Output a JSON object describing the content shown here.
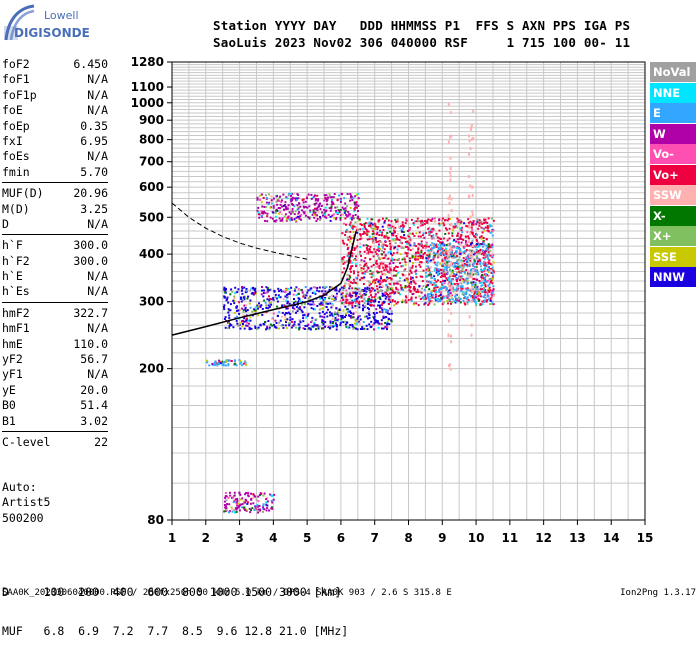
{
  "logo": {
    "line1": "Lowell",
    "line2": "DIGISONDE"
  },
  "header": {
    "line1": "Station YYYY DAY   DDD HHMMSS P1  FFS S AXN PPS IGA PS",
    "line2": "SaoLuis 2023 Nov02 306 040000 RSF     1 715 100 00- 11"
  },
  "params": [
    [
      {
        "name": "foF2",
        "value": "6.450"
      },
      {
        "name": "foF1",
        "value": "N/A"
      },
      {
        "name": "foF1p",
        "value": "N/A"
      },
      {
        "name": "foE",
        "value": "N/A"
      },
      {
        "name": "foEp",
        "value": "0.35"
      },
      {
        "name": "fxI",
        "value": "6.95"
      },
      {
        "name": "foEs",
        "value": "N/A"
      },
      {
        "name": "fmin",
        "value": "5.70"
      }
    ],
    [
      {
        "name": "MUF(D)",
        "value": "20.96"
      },
      {
        "name": "M(D)",
        "value": "3.25"
      },
      {
        "name": "D",
        "value": "N/A"
      }
    ],
    [
      {
        "name": "h`F",
        "value": "300.0"
      },
      {
        "name": "h`F2",
        "value": "300.0"
      },
      {
        "name": "h`E",
        "value": "N/A"
      },
      {
        "name": "h`Es",
        "value": "N/A"
      }
    ],
    [
      {
        "name": "hmF2",
        "value": "322.7"
      },
      {
        "name": "hmF1",
        "value": "N/A"
      },
      {
        "name": "hmE",
        "value": "110.0"
      },
      {
        "name": "yF2",
        "value": "56.7"
      },
      {
        "name": "yF1",
        "value": "N/A"
      },
      {
        "name": "yE",
        "value": "20.0"
      },
      {
        "name": "B0",
        "value": "51.4"
      },
      {
        "name": "B1",
        "value": "3.02"
      }
    ],
    [
      {
        "name": "C-level",
        "value": "22"
      }
    ]
  ],
  "auto": {
    "line1": "Auto:",
    "line2": "Artist5",
    "line3": "500200"
  },
  "legend": [
    {
      "label": "NoVal",
      "color": "#a0a0a0"
    },
    {
      "label": "NNE",
      "color": "#00e5ff"
    },
    {
      "label": "E",
      "color": "#33a6ff"
    },
    {
      "label": "W",
      "color": "#b000a8"
    },
    {
      "label": "Vo-",
      "color": "#ff4fb3"
    },
    {
      "label": "Vo+",
      "color": "#ee0040"
    },
    {
      "label": "SSW",
      "color": "#ffb0b0"
    },
    {
      "label": "X-",
      "color": "#007800"
    },
    {
      "label": "X+",
      "color": "#80c060"
    },
    {
      "label": "SSE",
      "color": "#c8c800"
    },
    {
      "label": "NNW",
      "color": "#1a00e0"
    }
  ],
  "dtable": {
    "row1": "D     100  200  400  600  800 1000 1500 3000 [km]",
    "row2": "MUF   6.8  6.9  7.2  7.7  8.5  9.6 12.8 21.0 [MHz]"
  },
  "footer": {
    "left": "SAA0K_2023306040000.RSF / 280fx256h 50 kHz 5.0 km / DPS-4 SAA0K 903 / 2.6 S 315.8 E",
    "right": "Ion2Png 1.3.17"
  },
  "chart_data": {
    "type": "scatter",
    "title": "",
    "xlabel": "",
    "ylabel": "",
    "x_ticks": [
      1,
      2,
      3,
      4,
      5,
      6,
      7,
      8,
      9,
      10,
      11,
      12,
      13,
      14,
      15
    ],
    "y_ticks": [
      80,
      200,
      300,
      400,
      500,
      600,
      700,
      800,
      900,
      1000,
      1100,
      1280
    ],
    "xlim": [
      1,
      15
    ],
    "ylim": [
      80,
      1280
    ],
    "y_scale": "log",
    "grid": true,
    "legend_position": "right",
    "profile_curve": {
      "x": [
        1.0,
        2.0,
        3.0,
        4.0,
        5.0,
        5.5,
        6.0,
        6.2,
        6.45
      ],
      "y": [
        245,
        258,
        272,
        286,
        300,
        312,
        335,
        370,
        460
      ]
    },
    "virtual_height_trace": {
      "x": [
        1.0,
        1.5,
        2.0,
        2.5,
        3.0,
        3.5,
        4.0,
        4.5,
        5.0
      ],
      "y": [
        545,
        500,
        468,
        445,
        428,
        415,
        405,
        396,
        388
      ]
    },
    "echo_clusters": [
      {
        "name": "F-trace",
        "x": [
          2.5,
          7.5
        ],
        "y": [
          255,
          330
        ],
        "direction": "NNW"
      },
      {
        "name": "F-spread",
        "x": [
          6.0,
          10.5
        ],
        "y": [
          295,
          500
        ],
        "direction": "Vo+"
      },
      {
        "name": "F-high",
        "x": [
          8.5,
          10.5
        ],
        "y": [
          300,
          430
        ],
        "direction": "E"
      },
      {
        "name": "second-hop",
        "x": [
          3.5,
          6.5
        ],
        "y": [
          490,
          580
        ],
        "direction": "W"
      },
      {
        "name": "E-echo",
        "x": [
          2.0,
          3.2
        ],
        "y": [
          205,
          212
        ],
        "direction": "E"
      },
      {
        "name": "low-echo",
        "x": [
          2.5,
          4.0
        ],
        "y": [
          84,
          95
        ],
        "direction": "W"
      },
      {
        "name": "SSW-column-1",
        "x": [
          9.15,
          9.25
        ],
        "y": [
          200,
          1000
        ],
        "direction": "SSW"
      },
      {
        "name": "SSW-column-2",
        "x": [
          9.75,
          9.9
        ],
        "y": [
          240,
          1010
        ],
        "direction": "SSW"
      }
    ]
  }
}
